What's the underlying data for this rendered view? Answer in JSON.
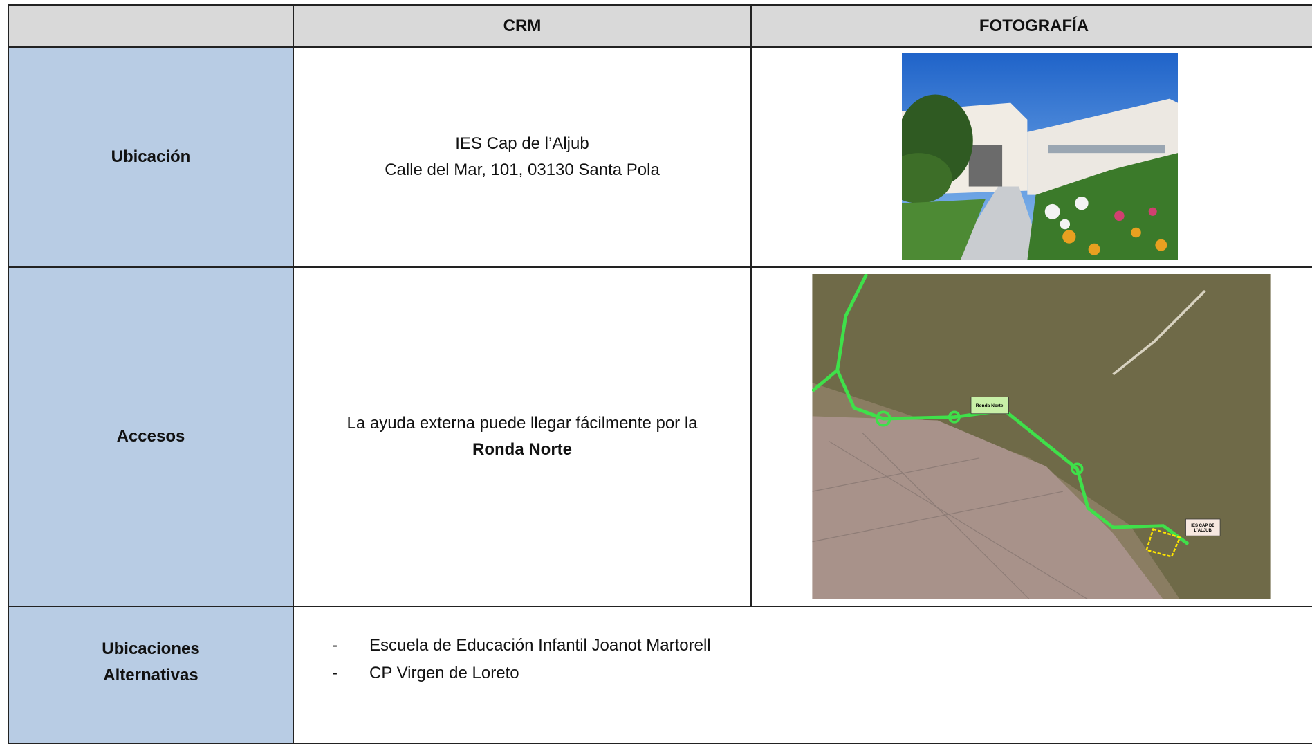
{
  "header": {
    "columns": [
      "CRM",
      "FOTOGRAFÍA"
    ]
  },
  "rows": [
    {
      "label": "Ubicación",
      "content": [
        "IES Cap de l’Aljub",
        "Calle del Mar, 101, 03130 Santa Pola"
      ]
    },
    {
      "label": "Accesos",
      "content": [
        "La ayuda externa puede llegar fácilmente por la",
        "Ronda Norte"
      ],
      "map_labels": [
        "Ronda Norte",
        "IES CAP DE",
        "L'ALJUB"
      ]
    },
    {
      "label": [
        "Ubicaciones",
        "Alternativas"
      ],
      "items": [
        "Escuela de Educación Infantil Joanot Martorell",
        "CP Virgen de Loreto"
      ]
    }
  ]
}
